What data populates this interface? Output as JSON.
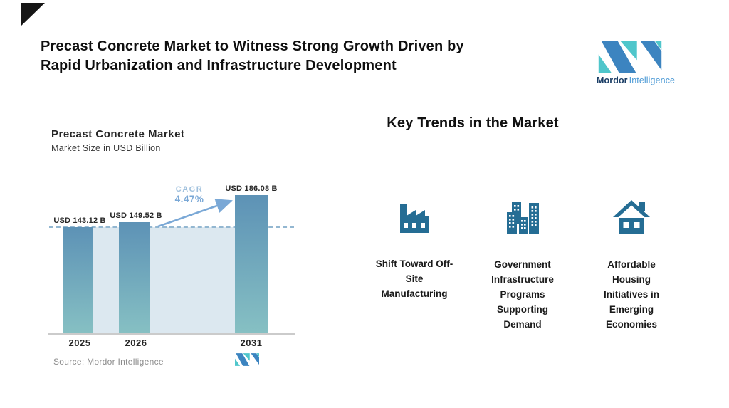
{
  "page": {
    "title": "Precast Concrete Market to Witness Strong Growth Driven by\nRapid Urbanization and Infrastructure Development"
  },
  "logo": {
    "brand_bold": "Mordor",
    "brand_light": "Intelligence"
  },
  "chart": {
    "source": "Source: Mordor Intelligence"
  },
  "chart_data": {
    "type": "bar",
    "title": "Precast Concrete Market",
    "subtitle": "Market Size in USD Billion",
    "categories": [
      "2025",
      "2026",
      "2031"
    ],
    "values": [
      143.12,
      149.52,
      186.08
    ],
    "labels": [
      "USD 143.12 B",
      "USD 149.52 B",
      "USD 186.08 B"
    ],
    "xlabel": "",
    "ylabel": "Market Size in USD Billion",
    "ylim": [
      0,
      200
    ],
    "grid": false,
    "legend": "none",
    "annotations": {
      "cagr_label": "CAGR",
      "cagr_value": "4.47%",
      "dashed_reference_at": 143.12
    }
  },
  "trends": {
    "heading": "Key Trends in the Market",
    "items": [
      {
        "icon": "factory-icon",
        "label": "Shift Toward Off-\nSite\nManufacturing"
      },
      {
        "icon": "buildings-icon",
        "label": "Government\nInfrastructure\nPrograms\nSupporting\nDemand"
      },
      {
        "icon": "house-icon",
        "label": "Affordable\nHousing\nInitiatives in\nEmerging\nEconomies"
      }
    ]
  },
  "colors": {
    "brand_blue": "#3c84c0",
    "brand_teal": "#4fc6cb",
    "brand_text_dark": "#1b3e66",
    "brand_text_light": "#4e9bd6",
    "bar_gradient_top": "#5d92b6",
    "bar_gradient_bottom": "#86c0c3",
    "plot_band": "#dce8f0",
    "dashed_line": "#93b7d1",
    "cagr_text": "#7aa8d6",
    "trend_icon": "#256d94",
    "source_text": "#8c8c8c",
    "corner_accent": "#161616"
  }
}
